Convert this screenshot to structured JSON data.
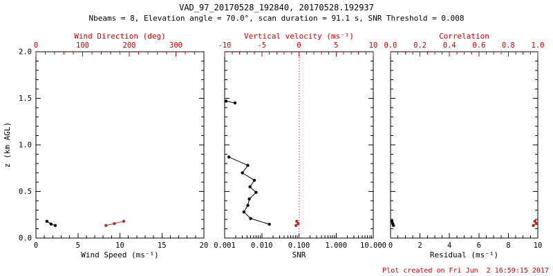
{
  "header": {
    "title": "VAD_97_20170528_192840, 20170528.192937",
    "subtitle": "Nbeams = 8, Elevation angle = 70.0°, scan duration = 91.1 s, SNR Threshold = 0.008"
  },
  "footer": {
    "created_text": "Plot created on Fri Jun  2 16:59:15 2017"
  },
  "colors": {
    "background": "#ffffff",
    "axis_black": "#000000",
    "axis_red": "#cc0000",
    "data_red": "#b03028"
  },
  "chart_data": [
    {
      "type": "scatter",
      "panel": "wind",
      "y_axis": {
        "label": "z (km AGL)",
        "range": [
          0,
          2
        ],
        "tick_values": [
          0,
          0.5,
          1,
          1.5,
          2
        ],
        "tick_labels": [
          "0.0",
          "0.5",
          "1.0",
          "1.5",
          "2.0"
        ],
        "minor_per_major": 5,
        "show_labels": true
      },
      "bottom_axis": {
        "label": "Wind Speed (ms⁻¹)",
        "scale": "linear",
        "range": [
          0,
          20
        ],
        "tick_values": [
          0,
          5,
          10,
          15,
          20
        ],
        "tick_labels": [
          "0",
          "5",
          "10",
          "15",
          "20"
        ],
        "minor_per_major": 5,
        "color": "#000000"
      },
      "top_axis": {
        "label": "Wind Direction (deg)",
        "scale": "linear",
        "range": [
          0,
          360
        ],
        "tick_values": [
          0,
          100,
          200,
          300
        ],
        "tick_labels": [
          "0",
          "100",
          "200",
          "300"
        ],
        "minor_per_major": 5,
        "color": "#cc0000"
      },
      "series": [
        {
          "name": "wind-speed",
          "axis": "bottom",
          "color": "#000000",
          "segments": [
            [
              [
                1.3,
                0.18
              ],
              [
                1.8,
                0.15
              ],
              [
                2.3,
                0.135
              ]
            ]
          ]
        },
        {
          "name": "wind-direction",
          "axis": "top",
          "color": "#b03028",
          "segments": [
            [
              [
                150,
                0.135
              ],
              [
                168,
                0.155
              ],
              [
                188,
                0.18
              ]
            ]
          ]
        }
      ]
    },
    {
      "type": "scatter",
      "panel": "snr",
      "y_axis": {
        "label": "",
        "range": [
          0,
          2
        ],
        "tick_values": [
          0,
          0.5,
          1,
          1.5,
          2
        ],
        "tick_labels": [
          "0.0",
          "0.5",
          "1.0",
          "1.5",
          "2.0"
        ],
        "minor_per_major": 5,
        "show_labels": false
      },
      "bottom_axis": {
        "label": "SNR",
        "scale": "log",
        "range": [
          0.001,
          10
        ],
        "tick_values": [
          0.001,
          0.01,
          0.1,
          1,
          10
        ],
        "tick_labels": [
          "0.001",
          "0.010",
          "0.100",
          "1.000",
          "10.000"
        ],
        "color": "#000000"
      },
      "top_axis": {
        "label": "Vertical velocity (ms⁻¹)",
        "scale": "linear",
        "range": [
          -10,
          10
        ],
        "tick_values": [
          -10,
          -5,
          0,
          5,
          10
        ],
        "tick_labels": [
          "-10",
          "-5",
          "0",
          "5",
          "10"
        ],
        "minor_per_major": 5,
        "color": "#cc0000"
      },
      "ref_lines": [
        {
          "axis": "top",
          "value": 0,
          "color": "#cc3322",
          "dash": "1,3"
        }
      ],
      "series": [
        {
          "name": "snr",
          "axis": "bottom",
          "color": "#000000",
          "segments": [
            [
              [
                0.0011,
                1.47
              ],
              [
                0.0019,
                1.45
              ]
            ],
            [
              [
                0.0013,
                0.87
              ],
              [
                0.0042,
                0.78
              ],
              [
                0.003,
                0.7
              ],
              [
                0.0063,
                0.62
              ],
              [
                0.0048,
                0.55
              ],
              [
                0.007,
                0.49
              ],
              [
                0.0046,
                0.42
              ],
              [
                0.0042,
                0.35
              ],
              [
                0.0033,
                0.28
              ],
              [
                0.005,
                0.21
              ],
              [
                0.016,
                0.148
              ]
            ]
          ]
        },
        {
          "name": "vertical-velocity",
          "axis": "top",
          "color": "#b03028",
          "segments": [
            [
              [
                -0.3,
                0.18
              ],
              [
                -0.1,
                0.155
              ],
              [
                -0.4,
                0.135
              ]
            ]
          ]
        }
      ]
    },
    {
      "type": "scatter",
      "panel": "residual",
      "y_axis": {
        "label": "",
        "range": [
          0,
          2
        ],
        "tick_values": [
          0,
          0.5,
          1,
          1.5,
          2
        ],
        "tick_labels": [
          "0.0",
          "0.5",
          "1.0",
          "1.5",
          "2.0"
        ],
        "minor_per_major": 5,
        "show_labels": false
      },
      "bottom_axis": {
        "label": "Residual (ms⁻¹)",
        "scale": "linear",
        "range": [
          0,
          10
        ],
        "tick_values": [
          0,
          2,
          4,
          6,
          8,
          10
        ],
        "tick_labels": [
          "0",
          "2",
          "4",
          "6",
          "8",
          "10"
        ],
        "minor_per_major": 4,
        "color": "#000000"
      },
      "top_axis": {
        "label": "Correlation",
        "scale": "linear",
        "range": [
          0,
          1
        ],
        "tick_values": [
          0,
          0.2,
          0.4,
          0.6,
          0.8,
          1
        ],
        "tick_labels": [
          "0.0",
          "0.2",
          "0.4",
          "0.6",
          "0.8",
          "1.0"
        ],
        "minor_per_major": 4,
        "color": "#cc0000"
      },
      "series": [
        {
          "name": "residual",
          "axis": "bottom",
          "color": "#000000",
          "segments": [
            [
              [
                0.1,
                0.18
              ],
              [
                0.15,
                0.155
              ],
              [
                0.2,
                0.135
              ]
            ]
          ]
        },
        {
          "name": "correlation",
          "axis": "top",
          "color": "#b03028",
          "segments": [
            [
              [
                0.98,
                0.18
              ],
              [
                0.99,
                0.155
              ],
              [
                0.97,
                0.135
              ]
            ]
          ]
        }
      ]
    }
  ]
}
